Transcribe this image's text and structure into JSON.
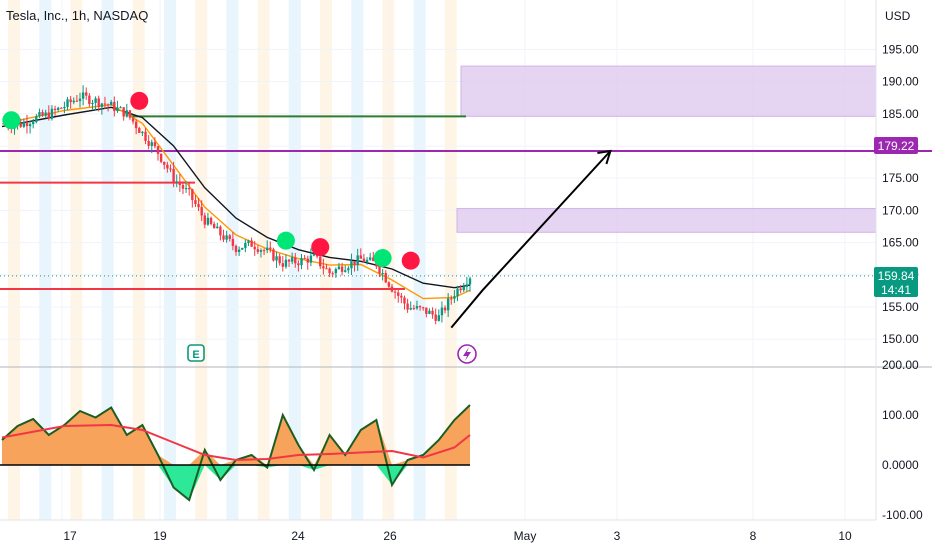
{
  "chart_data": [
    {
      "type": "candlestick",
      "title": "Tesla, Inc., 1h, NASDAQ",
      "currency": "USD",
      "ylim": [
        146,
        198
      ],
      "y_ticks": [
        "195.00",
        "190.00",
        "185.00",
        "180.00",
        "175.00",
        "170.00",
        "165.00",
        "160.00",
        "155.00",
        "150.00"
      ],
      "x_ticks": [
        "17",
        "19",
        "24",
        "26",
        "May",
        "3",
        "8",
        "10"
      ],
      "last_price": "159.84",
      "countdown": "14:41",
      "target_label": "179.22",
      "target_value": 179.22,
      "close_path": [
        [
          0,
          183.6
        ],
        [
          0.5,
          183.2
        ],
        [
          1,
          184.2
        ],
        [
          1.5,
          184.9
        ],
        [
          2,
          186.2
        ],
        [
          2.5,
          187.7
        ],
        [
          3,
          187.0
        ],
        [
          3.5,
          186.2
        ],
        [
          4,
          185.0
        ],
        [
          4.5,
          182.0
        ],
        [
          5,
          179.0
        ],
        [
          5.5,
          175.0
        ],
        [
          6,
          172.5
        ],
        [
          6.5,
          168.5
        ],
        [
          7,
          166.3
        ],
        [
          7.5,
          164.2
        ],
        [
          8,
          164.8
        ],
        [
          8.5,
          163.6
        ],
        [
          9,
          161.8
        ],
        [
          9.5,
          162.1
        ],
        [
          10,
          162.7
        ],
        [
          10.5,
          160.3
        ],
        [
          11,
          161.5
        ],
        [
          11.5,
          162.4
        ],
        [
          12,
          161.7
        ],
        [
          12.5,
          158.0
        ],
        [
          13,
          155.0
        ],
        [
          13.5,
          154.5
        ],
        [
          14,
          153.4
        ],
        [
          14.5,
          157.2
        ],
        [
          15,
          159.84
        ]
      ],
      "ema_fast": [
        [
          0,
          183.4
        ],
        [
          2,
          185.5
        ],
        [
          3.5,
          186.4
        ],
        [
          4.5,
          183.5
        ],
        [
          5.5,
          177.0
        ],
        [
          6.5,
          170.5
        ],
        [
          7.5,
          166.2
        ],
        [
          8.5,
          164.0
        ],
        [
          9.5,
          162.5
        ],
        [
          10.5,
          161.5
        ],
        [
          11.5,
          161.6
        ],
        [
          12.5,
          159.2
        ],
        [
          13.5,
          156.3
        ],
        [
          14.5,
          156.5
        ],
        [
          15,
          157.6
        ]
      ],
      "ema_slow": [
        [
          0,
          183.0
        ],
        [
          2,
          184.8
        ],
        [
          3.5,
          186.0
        ],
        [
          4.5,
          184.4
        ],
        [
          5.5,
          180.0
        ],
        [
          6.5,
          173.5
        ],
        [
          7.5,
          168.8
        ],
        [
          8.5,
          165.8
        ],
        [
          9.5,
          163.9
        ],
        [
          10.5,
          162.7
        ],
        [
          11.5,
          162.1
        ],
        [
          12.5,
          160.9
        ],
        [
          13.5,
          158.7
        ],
        [
          14.5,
          158.0
        ],
        [
          15,
          158.4
        ]
      ],
      "supply_zones": [
        {
          "from": 184.6,
          "to": 192.4
        },
        {
          "from": 166.6,
          "to": 170.3
        }
      ],
      "horizontal_levels": [
        {
          "value": 184.6,
          "color": "#2e7d32"
        },
        {
          "value": 179.22,
          "color": "#9c27b0"
        },
        {
          "value": 174.3,
          "color": "#f23645"
        },
        {
          "value": 157.8,
          "color": "#f23645"
        }
      ],
      "projection": [
        [
          14.4,
          151.8
        ],
        [
          15.4,
          157.6
        ],
        [
          19.5,
          179.22
        ]
      ],
      "signals": [
        {
          "x": 0.3,
          "y": 184.0,
          "kind": "buy"
        },
        {
          "x": 4.4,
          "y": 187.0,
          "kind": "sell"
        },
        {
          "x": 9.1,
          "y": 165.3,
          "kind": "buy"
        },
        {
          "x": 10.2,
          "y": 164.3,
          "kind": "sell"
        },
        {
          "x": 12.2,
          "y": 162.6,
          "kind": "buy"
        },
        {
          "x": 13.1,
          "y": 162.2,
          "kind": "sell"
        }
      ],
      "colors": {
        "up": "#089981",
        "down": "#f23645",
        "zone": "#e1cdf0",
        "target": "#9c27b0",
        "grid": "#f0f3fa"
      }
    },
    {
      "type": "oscillator",
      "ylim": [
        -100,
        210
      ],
      "y_ticks": [
        "200.00",
        "100.00",
        "0.0000",
        "-100.00"
      ],
      "osc": [
        [
          0,
          50
        ],
        [
          0.5,
          78
        ],
        [
          1,
          92
        ],
        [
          1.5,
          60
        ],
        [
          2,
          80
        ],
        [
          2.5,
          108
        ],
        [
          3,
          95
        ],
        [
          3.5,
          115
        ],
        [
          4,
          60
        ],
        [
          4.5,
          80
        ],
        [
          5,
          20
        ],
        [
          5.5,
          -45
        ],
        [
          6,
          -70
        ],
        [
          6.5,
          30
        ],
        [
          7,
          -30
        ],
        [
          7.5,
          10
        ],
        [
          8,
          20
        ],
        [
          8.5,
          -5
        ],
        [
          9,
          100
        ],
        [
          9.5,
          40
        ],
        [
          10,
          -10
        ],
        [
          10.5,
          60
        ],
        [
          11,
          20
        ],
        [
          11.5,
          70
        ],
        [
          12,
          90
        ],
        [
          12.5,
          -40
        ],
        [
          13,
          10
        ],
        [
          13.5,
          20
        ],
        [
          14,
          50
        ],
        [
          14.5,
          90
        ],
        [
          15,
          120
        ]
      ],
      "signal": [
        [
          0,
          55
        ],
        [
          2,
          78
        ],
        [
          3.5,
          80
        ],
        [
          4.5,
          70
        ],
        [
          5.5,
          45
        ],
        [
          6.5,
          20
        ],
        [
          7.5,
          10
        ],
        [
          8.5,
          12
        ],
        [
          9.5,
          20
        ],
        [
          10.5,
          22
        ],
        [
          11.5,
          25
        ],
        [
          12.5,
          28
        ],
        [
          13.5,
          15
        ],
        [
          14.5,
          35
        ],
        [
          15,
          60
        ]
      ],
      "colors": {
        "fill_pos": "#f7a35c",
        "fill_neg": "#2ee89a",
        "line": "#1b5e20",
        "signal": "#f23645"
      }
    }
  ]
}
